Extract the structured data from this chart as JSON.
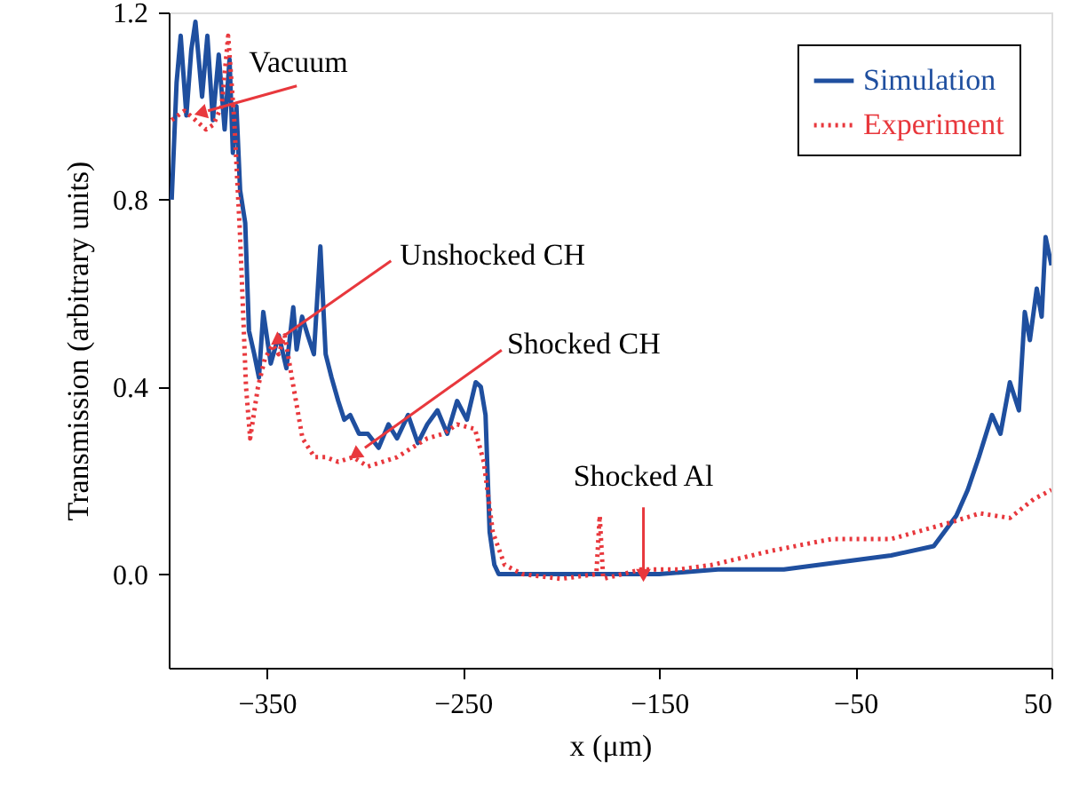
{
  "chart_data": {
    "type": "line",
    "xlabel": "x (μm)",
    "ylabel": "Transmission (arbitrary units)",
    "xlim": [
      -400,
      50
    ],
    "xticks": [
      -350,
      -250,
      -150,
      -50,
      50
    ],
    "ylim": [
      -0.2,
      1.2
    ],
    "yticks": [
      {
        "value": 0,
        "label": "0.0"
      },
      {
        "value": 0.4,
        "label": "0.4"
      },
      {
        "value": 0.8,
        "label": "0.8"
      },
      {
        "value": 1.2,
        "label": "1.2"
      }
    ],
    "grid": false,
    "legend": "top right",
    "marker": "none",
    "series": [
      {
        "name": "Simulation",
        "color": "#1f4f9f",
        "line_style": "solid",
        "x": [
          -398.5,
          -396,
          -393.9,
          -391,
          -388.5,
          -386.4,
          -383,
          -380.3,
          -377.5,
          -374.5,
          -371.5,
          -369,
          -367.3,
          -365.5,
          -363.6,
          -361,
          -359.1,
          -356.4,
          -354,
          -351.8,
          -348,
          -343.9,
          -340,
          -336.5,
          -334.8,
          -332,
          -329.1,
          -326,
          -322.7,
          -320,
          -317,
          -313.6,
          -310.5,
          -307.5,
          -303,
          -298.5,
          -293,
          -288,
          -283.6,
          -278,
          -273,
          -268.2,
          -263,
          -258,
          -253,
          -248,
          -243.5,
          -240.9,
          -238.5,
          -236.4,
          -234,
          -231.8,
          -225,
          -200,
          -175,
          -150,
          -120,
          -86.4,
          -68.2,
          -31.8,
          -10,
          1.5,
          7.3,
          13,
          19.7,
          24,
          28.8,
          33.4,
          36.4,
          39,
          42.5,
          45,
          47,
          50
        ],
        "values": [
          0.8,
          1.05,
          1.15,
          0.98,
          1.12,
          1.18,
          1.02,
          1.15,
          0.97,
          1.11,
          0.95,
          1.1,
          0.9,
          1.0,
          0.82,
          0.75,
          0.52,
          0.47,
          0.42,
          0.56,
          0.45,
          0.51,
          0.44,
          0.57,
          0.48,
          0.55,
          0.51,
          0.47,
          0.7,
          0.47,
          0.42,
          0.37,
          0.33,
          0.34,
          0.3,
          0.3,
          0.27,
          0.32,
          0.29,
          0.34,
          0.28,
          0.32,
          0.35,
          0.3,
          0.37,
          0.33,
          0.41,
          0.4,
          0.34,
          0.09,
          0.02,
          0.0,
          0.0,
          0.0,
          0.0,
          0.0,
          0.01,
          0.01,
          0.02,
          0.04,
          0.06,
          0.125,
          0.18,
          0.25,
          0.34,
          0.3,
          0.41,
          0.35,
          0.56,
          0.5,
          0.61,
          0.55,
          0.72,
          0.66
        ]
      },
      {
        "name": "Experiment",
        "color": "#e8383d",
        "line_style": "dotted",
        "x": [
          -398.5,
          -392,
          -386.4,
          -381,
          -377.3,
          -373,
          -369.7,
          -366.6,
          -363.6,
          -360.6,
          -358.5,
          -354.5,
          -351,
          -347,
          -344,
          -340.9,
          -336.4,
          -331.8,
          -325.7,
          -320,
          -313.6,
          -306,
          -298.5,
          -291,
          -283.6,
          -276,
          -268.2,
          -260,
          -253,
          -243.9,
          -239.4,
          -234.8,
          -228.8,
          -219.7,
          -200,
          -182,
          -180.3,
          -178.5,
          -159.1,
          -140,
          -122.7,
          -92.7,
          -62.1,
          -31.8,
          -1.8,
          13.6,
          28.8,
          40.9,
          50
        ],
        "values": [
          0.97,
          0.99,
          0.97,
          0.95,
          0.96,
          1.0,
          1.15,
          0.97,
          0.72,
          0.4,
          0.29,
          0.4,
          0.46,
          0.49,
          0.47,
          0.51,
          0.4,
          0.29,
          0.25,
          0.25,
          0.24,
          0.25,
          0.23,
          0.24,
          0.25,
          0.27,
          0.29,
          0.3,
          0.32,
          0.31,
          0.24,
          0.09,
          0.02,
          0.0,
          -0.01,
          0.0,
          0.125,
          -0.01,
          0.01,
          0.01,
          0.02,
          0.05,
          0.075,
          0.075,
          0.11,
          0.13,
          0.12,
          0.16,
          0.18
        ]
      }
    ],
    "annotations": [
      {
        "text": "Vacuum",
        "x": -380,
        "y": 0.99
      },
      {
        "text": "Unshocked CH",
        "x": -341,
        "y": 0.51
      },
      {
        "text": "Shocked CH",
        "x": -300,
        "y": 0.27
      },
      {
        "text": "Shocked Al",
        "x": -158,
        "y": 0.01
      }
    ]
  }
}
